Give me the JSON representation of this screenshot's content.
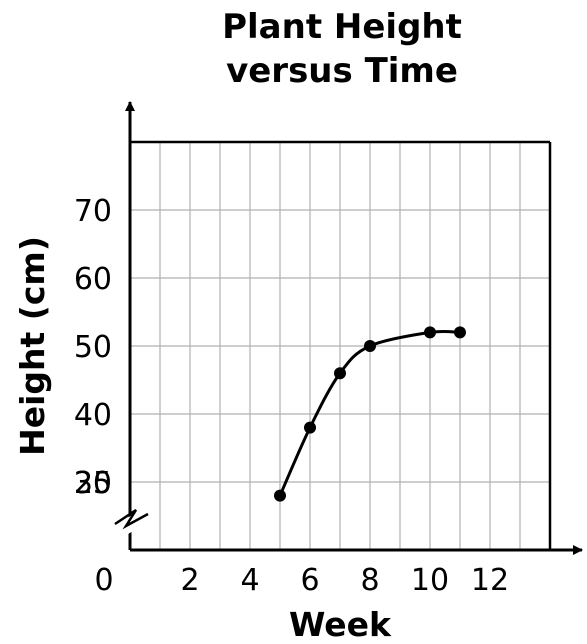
{
  "chart_data": {
    "type": "line",
    "title_lines": [
      "Plant Height",
      "versus Time"
    ],
    "xlabel": "Week",
    "ylabel": "Height (cm)",
    "x_ticks": [
      "0",
      "2",
      "4",
      "6",
      "8",
      "10",
      "12"
    ],
    "y_ticks": [
      "25",
      "30",
      "40",
      "50",
      "60",
      "70"
    ],
    "xlim": [
      0,
      14
    ],
    "ylim": [
      20,
      80
    ],
    "y_axis_break": true,
    "grid": true,
    "series": [
      {
        "x": [
          5,
          6,
          7,
          8,
          10,
          11
        ],
        "y": [
          28,
          38,
          46,
          50,
          52,
          52
        ]
      }
    ],
    "colors": {
      "line": "#000000",
      "grid": "#b0b0b0",
      "frame": "#000000"
    }
  }
}
